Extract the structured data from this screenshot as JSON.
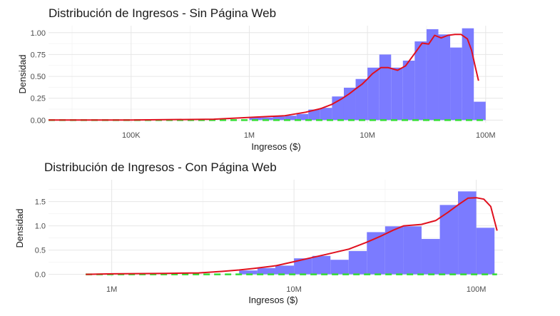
{
  "colors": {
    "bar_fill": "#7b7bff",
    "density_line": "#e0101e",
    "baseline_dashed": "#33dd33",
    "grid": "#e6e6e6"
  },
  "chart_data": [
    {
      "type": "bar",
      "title": "Distribución de Ingresos - Sin Página Web",
      "xlabel": "Ingresos ($)",
      "ylabel": "Densidad",
      "x_scale": "log10",
      "xlim": [
        20000,
        140000000
      ],
      "ylim": [
        -0.03,
        1.08
      ],
      "x_ticks": [
        {
          "value": 100000,
          "label": "100K"
        },
        {
          "value": 1000000,
          "label": "1M"
        },
        {
          "value": 10000000,
          "label": "10M"
        },
        {
          "value": 100000000,
          "label": "100M"
        }
      ],
      "y_ticks": [
        {
          "value": 0,
          "label": "0.00"
        },
        {
          "value": 0.25,
          "label": "0.25"
        },
        {
          "value": 0.5,
          "label": "0.50"
        },
        {
          "value": 0.75,
          "label": "0.75"
        },
        {
          "value": 1.0,
          "label": "1.00"
        }
      ],
      "bars": [
        {
          "x0": 1000000,
          "x1": 1260000,
          "value": 0.03
        },
        {
          "x0": 1260000,
          "x1": 1585000,
          "value": 0.03
        },
        {
          "x0": 1585000,
          "x1": 2000000,
          "value": 0.04
        },
        {
          "x0": 2000000,
          "x1": 2510000,
          "value": 0.05
        },
        {
          "x0": 2510000,
          "x1": 3160000,
          "value": 0.07
        },
        {
          "x0": 3160000,
          "x1": 3980000,
          "value": 0.12
        },
        {
          "x0": 3980000,
          "x1": 5010000,
          "value": 0.14
        },
        {
          "x0": 5010000,
          "x1": 6310000,
          "value": 0.27
        },
        {
          "x0": 6310000,
          "x1": 7940000,
          "value": 0.37
        },
        {
          "x0": 7940000,
          "x1": 10000000,
          "value": 0.47
        },
        {
          "x0": 10000000,
          "x1": 12600000,
          "value": 0.6
        },
        {
          "x0": 12600000,
          "x1": 15850000,
          "value": 0.75
        },
        {
          "x0": 15850000,
          "x1": 19950000,
          "value": 0.6
        },
        {
          "x0": 19950000,
          "x1": 25100000,
          "value": 0.68
        },
        {
          "x0": 25100000,
          "x1": 31600000,
          "value": 0.9
        },
        {
          "x0": 31600000,
          "x1": 39800000,
          "value": 1.04
        },
        {
          "x0": 39800000,
          "x1": 50100000,
          "value": 0.98
        },
        {
          "x0": 50100000,
          "x1": 63100000,
          "value": 0.83
        },
        {
          "x0": 63100000,
          "x1": 79400000,
          "value": 1.05
        },
        {
          "x0": 79400000,
          "x1": 100000000,
          "value": 0.21
        }
      ],
      "density": {
        "x": [
          20000,
          100000,
          500000,
          1000000,
          2000000,
          3000000,
          4000000,
          5000000,
          6000000,
          7000000,
          8000000,
          9000000,
          10000000,
          11000000,
          13000000,
          15000000,
          18000000,
          21000000,
          25000000,
          29000000,
          33000000,
          37000000,
          42000000,
          48000000,
          55000000,
          62000000,
          70000000,
          76000000,
          82000000,
          87000000
        ],
        "y": [
          0.0,
          0.0,
          0.01,
          0.03,
          0.05,
          0.09,
          0.13,
          0.18,
          0.24,
          0.3,
          0.36,
          0.41,
          0.47,
          0.53,
          0.6,
          0.6,
          0.57,
          0.62,
          0.76,
          0.88,
          0.87,
          0.97,
          0.94,
          0.97,
          0.98,
          0.98,
          0.93,
          0.8,
          0.6,
          0.45
        ]
      },
      "baseline": {
        "x0": 20000,
        "x1": 100000000,
        "value": 0
      }
    },
    {
      "type": "bar",
      "title": "Distribución de Ingresos - Con Página Web",
      "xlabel": "Ingresos ($)",
      "ylabel": "Densidad",
      "x_scale": "log10",
      "xlim": [
        450000,
        140000000
      ],
      "ylim": [
        -0.05,
        1.95
      ],
      "x_ticks": [
        {
          "value": 1000000,
          "label": "1M"
        },
        {
          "value": 10000000,
          "label": "10M"
        },
        {
          "value": 100000000,
          "label": "100M"
        }
      ],
      "y_ticks": [
        {
          "value": 0,
          "label": "0.0"
        },
        {
          "value": 0.5,
          "label": "0.5"
        },
        {
          "value": 1.0,
          "label": "1.0"
        },
        {
          "value": 1.5,
          "label": "1.5"
        }
      ],
      "bars": [
        {
          "x0": 5000000,
          "x1": 6300000,
          "value": 0.08
        },
        {
          "x0": 6300000,
          "x1": 7900000,
          "value": 0.13
        },
        {
          "x0": 7900000,
          "x1": 10000000,
          "value": 0.18
        },
        {
          "x0": 10000000,
          "x1": 12600000,
          "value": 0.33
        },
        {
          "x0": 12600000,
          "x1": 15850000,
          "value": 0.38
        },
        {
          "x0": 15850000,
          "x1": 19950000,
          "value": 0.3
        },
        {
          "x0": 19950000,
          "x1": 25100000,
          "value": 0.48
        },
        {
          "x0": 25100000,
          "x1": 31600000,
          "value": 0.87
        },
        {
          "x0": 31600000,
          "x1": 39800000,
          "value": 0.99
        },
        {
          "x0": 39800000,
          "x1": 50100000,
          "value": 0.99
        },
        {
          "x0": 50100000,
          "x1": 63100000,
          "value": 0.73
        },
        {
          "x0": 63100000,
          "x1": 79400000,
          "value": 1.43
        },
        {
          "x0": 79400000,
          "x1": 100000000,
          "value": 1.71
        },
        {
          "x0": 100000000,
          "x1": 125900000,
          "value": 0.96
        }
      ],
      "density": {
        "x": [
          720000,
          1000000,
          2000000,
          3000000,
          4000000,
          5000000,
          6000000,
          8000000,
          10000000,
          12000000,
          15000000,
          20000000,
          25000000,
          30000000,
          35000000,
          40000000,
          50000000,
          60000000,
          70000000,
          80000000,
          90000000,
          100000000,
          110000000,
          120000000,
          130000000
        ],
        "y": [
          0.0,
          0.01,
          0.02,
          0.03,
          0.06,
          0.09,
          0.12,
          0.18,
          0.26,
          0.33,
          0.41,
          0.52,
          0.66,
          0.79,
          0.91,
          1.0,
          1.03,
          1.11,
          1.28,
          1.44,
          1.57,
          1.58,
          1.55,
          1.4,
          0.9
        ]
      },
      "baseline": {
        "x0": 720000,
        "x1": 130000000,
        "value": 0
      }
    }
  ]
}
